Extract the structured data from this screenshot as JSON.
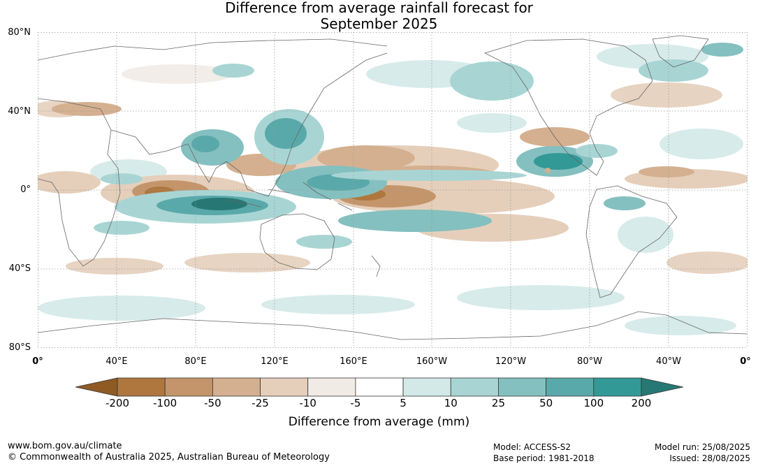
{
  "title_line1": "Difference from average rainfall forecast for",
  "title_line2": "September 2025",
  "lat_labels": [
    "80°N",
    "40°N",
    "0°",
    "40°S",
    "80°S"
  ],
  "lon_labels": [
    "0°",
    "40°E",
    "80°E",
    "120°E",
    "160°E",
    "160°W",
    "120°W",
    "80°W",
    "40°W",
    "0°"
  ],
  "legend": {
    "label": "Difference from average (mm)",
    "ticks": [
      "-200",
      "-100",
      "-50",
      "-25",
      "-10",
      "-5",
      "5",
      "10",
      "25",
      "50",
      "100",
      "200"
    ],
    "colors": [
      "#8f5a24",
      "#af773e",
      "#c4956b",
      "#d4b090",
      "#e5cfbb",
      "#f1ebe6",
      "#ffffff",
      "#d3e9e8",
      "#a8d5d4",
      "#84c0bf",
      "#5aa9aa",
      "#339997",
      "#277874"
    ]
  },
  "footer": {
    "url": "www.bom.gov.au/climate",
    "copyright": "© Commonwealth of Australia 2025, Australian Bureau of Meteorology",
    "model": "Model: ACCESS-S2",
    "base_period": "Base period: 1981-2018",
    "model_run": "Model run: 25/08/2025",
    "issued": "Issued: 28/08/2025"
  }
}
